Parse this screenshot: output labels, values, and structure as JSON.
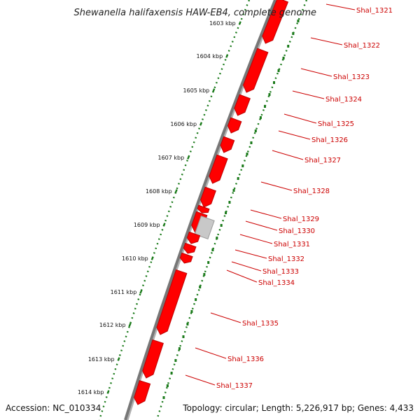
{
  "title": "Shewanella halifaxensis HAW-EB4, complete genome",
  "footer": {
    "accession": "Accession: NC_010334",
    "summary": "Topology: circular; Length: 5,226,917 bp; Genes: 4,433"
  },
  "colors": {
    "backbone": "#777777",
    "gene": "#ff0000",
    "gene_shade": "#bb0000",
    "pseudo_gene": "#c8c8c8",
    "tick": "#1a7a1a",
    "label": "#cc0000"
  },
  "kbp_labels": [
    "1603 kbp",
    "1604 kbp",
    "1605 kbp",
    "1606 kbp",
    "1607 kbp",
    "1608 kbp",
    "1609 kbp",
    "1610 kbp",
    "1611 kbp",
    "1612 kbp",
    "1613 kbp",
    "1614 kbp"
  ],
  "genes": [
    {
      "id": "Shal_1321",
      "color": "red"
    },
    {
      "id": "Shal_1322",
      "color": "red"
    },
    {
      "id": "Shal_1323",
      "color": "red"
    },
    {
      "id": "Shal_1324",
      "color": "red"
    },
    {
      "id": "Shal_1325",
      "color": "red"
    },
    {
      "id": "Shal_1326",
      "color": "red"
    },
    {
      "id": "Shal_1327",
      "color": "red"
    },
    {
      "id": "Shal_1328",
      "color": "red"
    },
    {
      "id": "Shal_1329",
      "color": "red"
    },
    {
      "id": "Shal_1330",
      "color": "grey"
    },
    {
      "id": "Shal_1331",
      "color": "red"
    },
    {
      "id": "Shal_1332",
      "color": "red"
    },
    {
      "id": "Shal_1333",
      "color": "red"
    },
    {
      "id": "Shal_1334",
      "color": "red"
    },
    {
      "id": "Shal_1335",
      "color": "red"
    },
    {
      "id": "Shal_1336",
      "color": "red"
    },
    {
      "id": "Shal_1337",
      "color": "red"
    }
  ]
}
